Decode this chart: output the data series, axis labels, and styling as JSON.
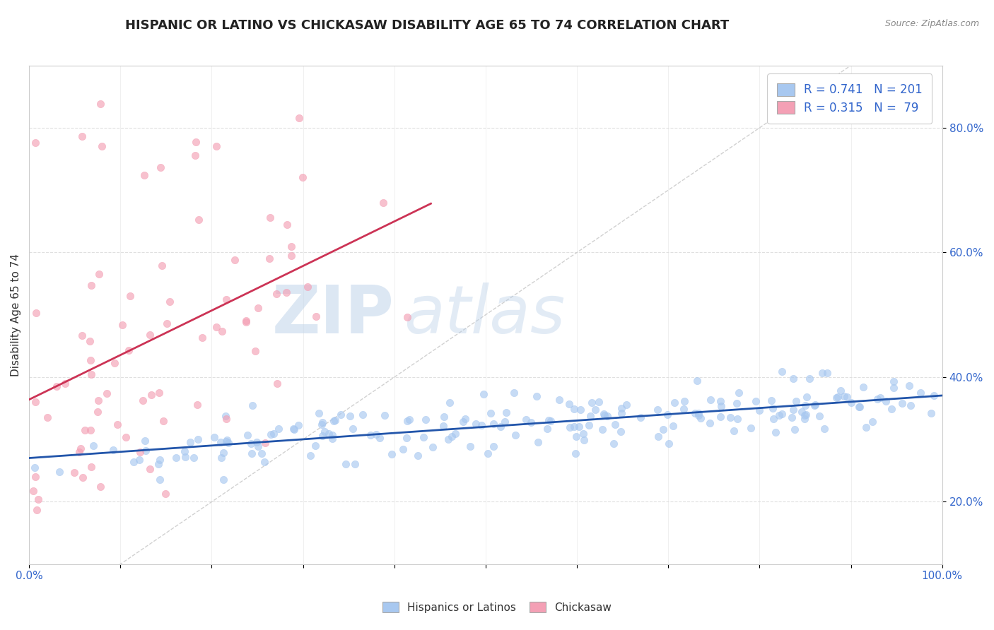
{
  "title": "HISPANIC OR LATINO VS CHICKASAW DISABILITY AGE 65 TO 74 CORRELATION CHART",
  "source": "Source: ZipAtlas.com",
  "xlabel": "",
  "ylabel": "Disability Age 65 to 74",
  "xlim": [
    0.0,
    1.0
  ],
  "ylim": [
    0.1,
    0.9
  ],
  "yticks": [
    0.2,
    0.4,
    0.6,
    0.8
  ],
  "ytick_labels": [
    "20.0%",
    "40.0%",
    "60.0%",
    "80.0%"
  ],
  "blue_color": "#a8c8f0",
  "pink_color": "#f4a0b5",
  "blue_line_color": "#2255aa",
  "pink_line_color": "#cc3355",
  "R_blue": 0.741,
  "N_blue": 201,
  "R_pink": 0.315,
  "N_pink": 79,
  "title_fontsize": 13,
  "axis_label_fontsize": 11,
  "tick_fontsize": 11,
  "legend_fontsize": 12,
  "watermark_zip": "ZIP",
  "watermark_atlas": "atlas",
  "background_color": "#ffffff",
  "grid_color": "#dddddd",
  "blue_seed": 12,
  "pink_seed": 7
}
